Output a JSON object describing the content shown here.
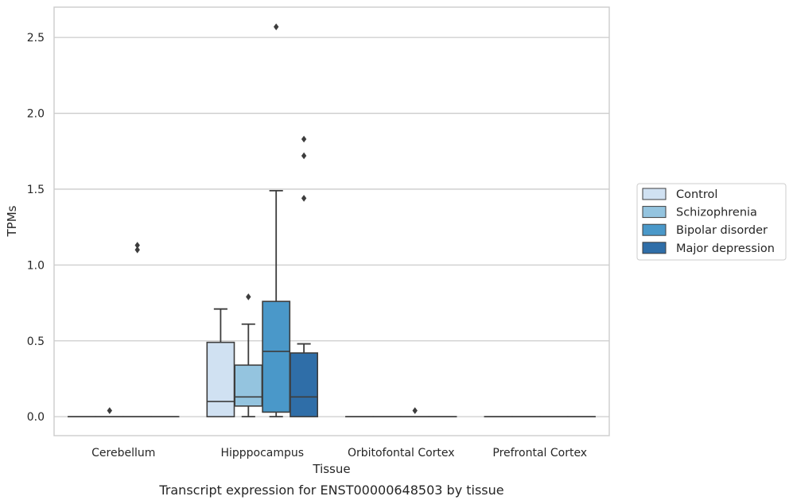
{
  "chart_data": {
    "type": "box",
    "caption": "Transcript expression for ENST00000648503 by tissue",
    "xlabel": "Tissue",
    "ylabel": "TPMs",
    "ylim": [
      -0.125,
      2.7
    ],
    "yticks": [
      "0.0",
      "0.5",
      "1.0",
      "1.5",
      "2.0",
      "2.5"
    ],
    "ytick_values": [
      0,
      0.5,
      1.0,
      1.5,
      2.0,
      2.5
    ],
    "grid": "horizontal",
    "legend_placement": "right",
    "categories": [
      "Cerebellum",
      "Hipppocampus",
      "Orbitofontal Cortex",
      "Prefrontal Cortex"
    ],
    "series": [
      {
        "name": "Control",
        "color": "#d0e1f2",
        "boxes": [
          {
            "q1": 0,
            "median": 0,
            "q3": 0,
            "whisker_low": 0,
            "whisker_high": 0,
            "outliers": []
          },
          {
            "q1": 0,
            "median": 0.1,
            "q3": 0.49,
            "whisker_low": 0,
            "whisker_high": 0.71,
            "outliers": []
          },
          {
            "q1": 0,
            "median": 0,
            "q3": 0,
            "whisker_low": 0,
            "whisker_high": 0,
            "outliers": []
          },
          {
            "q1": 0,
            "median": 0,
            "q3": 0,
            "whisker_low": 0,
            "whisker_high": 0,
            "outliers": []
          }
        ]
      },
      {
        "name": "Schizophrenia",
        "color": "#94c4df",
        "boxes": [
          {
            "q1": 0,
            "median": 0,
            "q3": 0,
            "whisker_low": 0,
            "whisker_high": 0,
            "outliers": [
              0.04
            ]
          },
          {
            "q1": 0.07,
            "median": 0.13,
            "q3": 0.34,
            "whisker_low": 0,
            "whisker_high": 0.61,
            "outliers": [
              0.79
            ]
          },
          {
            "q1": 0,
            "median": 0,
            "q3": 0,
            "whisker_low": 0,
            "whisker_high": 0,
            "outliers": []
          },
          {
            "q1": 0,
            "median": 0,
            "q3": 0,
            "whisker_low": 0,
            "whisker_high": 0,
            "outliers": []
          }
        ]
      },
      {
        "name": "Bipolar disorder",
        "color": "#4a98c9",
        "boxes": [
          {
            "q1": 0,
            "median": 0,
            "q3": 0,
            "whisker_low": 0,
            "whisker_high": 0,
            "outliers": [
              1.1,
              1.13
            ]
          },
          {
            "q1": 0.03,
            "median": 0.43,
            "q3": 0.76,
            "whisker_low": 0,
            "whisker_high": 1.49,
            "outliers": [
              2.57
            ]
          },
          {
            "q1": 0,
            "median": 0,
            "q3": 0,
            "whisker_low": 0,
            "whisker_high": 0,
            "outliers": [
              0.04
            ]
          },
          {
            "q1": 0,
            "median": 0,
            "q3": 0,
            "whisker_low": 0,
            "whisker_high": 0,
            "outliers": []
          }
        ]
      },
      {
        "name": "Major depression",
        "color": "#2f6ea8",
        "boxes": [
          {
            "q1": 0,
            "median": 0,
            "q3": 0,
            "whisker_low": 0,
            "whisker_high": 0,
            "outliers": []
          },
          {
            "q1": 0,
            "median": 0.13,
            "q3": 0.42,
            "whisker_low": 0,
            "whisker_high": 0.48,
            "outliers": [
              1.44,
              1.72,
              1.83
            ]
          },
          {
            "q1": 0,
            "median": 0,
            "q3": 0,
            "whisker_low": 0,
            "whisker_high": 0,
            "outliers": []
          },
          {
            "q1": 0,
            "median": 0,
            "q3": 0,
            "whisker_low": 0,
            "whisker_high": 0,
            "outliers": []
          }
        ]
      }
    ]
  }
}
